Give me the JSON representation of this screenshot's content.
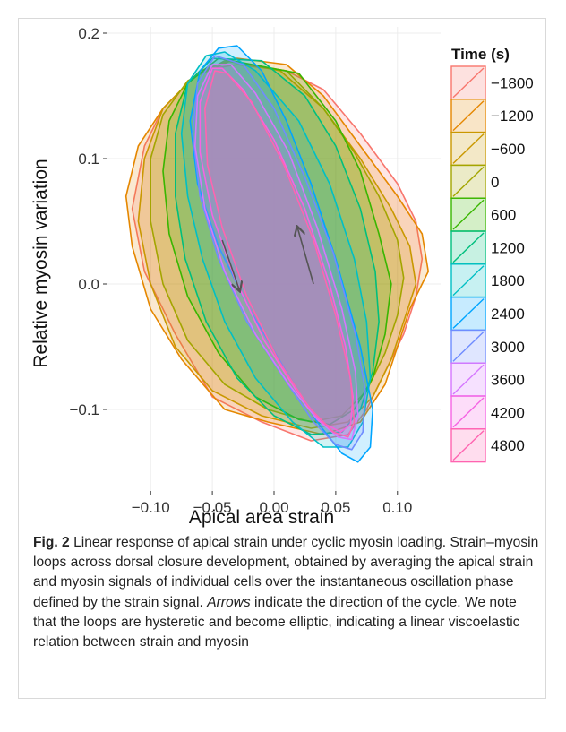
{
  "chart_data": {
    "type": "area",
    "subtype": "closed-loop polygons (strain–myosin loops)",
    "xlabel": "Apical area strain",
    "ylabel": "Relative myosin variation",
    "xlim": [
      -0.135,
      0.135
    ],
    "ylim": [
      -0.165,
      0.205
    ],
    "x_ticks": [
      -0.1,
      -0.05,
      0.0,
      0.05,
      0.1
    ],
    "x_tick_labels": [
      "−0.10",
      "−0.05",
      "0.00",
      "0.05",
      "0.10"
    ],
    "y_ticks": [
      -0.1,
      0.0,
      0.1,
      0.2
    ],
    "y_tick_labels": [
      "−0.1",
      "0.0",
      "0.1",
      "0.2"
    ],
    "grid": true,
    "legend": {
      "title": "Time (s)",
      "placement": "right"
    },
    "fill_opacity": 0.18,
    "series": [
      {
        "name": "−1800",
        "color": "#F8766D",
        "x": [
          -0.03,
          -0.06,
          -0.09,
          -0.105,
          -0.115,
          -0.105,
          -0.08,
          -0.05,
          -0.01,
          0.03,
          0.06,
          0.075,
          0.09,
          0.105,
          0.115,
          0.12,
          0.115,
          0.1,
          0.07,
          0.04,
          0.01
        ],
        "y": [
          0.175,
          0.17,
          0.14,
          0.11,
          0.06,
          0.01,
          -0.04,
          -0.09,
          -0.11,
          -0.125,
          -0.12,
          -0.1,
          -0.07,
          -0.04,
          -0.01,
          0.02,
          0.05,
          0.08,
          0.12,
          0.155,
          0.17
        ]
      },
      {
        "name": "−1200",
        "color": "#E58700",
        "x": [
          -0.03,
          -0.06,
          -0.09,
          -0.11,
          -0.12,
          -0.115,
          -0.1,
          -0.075,
          -0.04,
          -0.005,
          0.04,
          0.07,
          0.09,
          0.1,
          0.11,
          0.12,
          0.125,
          0.12,
          0.1,
          0.07,
          0.04,
          0.01
        ],
        "y": [
          0.18,
          0.17,
          0.14,
          0.11,
          0.07,
          0.03,
          -0.02,
          -0.06,
          -0.1,
          -0.11,
          -0.12,
          -0.11,
          -0.08,
          -0.05,
          -0.02,
          0.0,
          0.01,
          0.04,
          0.07,
          0.11,
          0.15,
          0.175
        ]
      },
      {
        "name": "−600",
        "color": "#C99800",
        "x": [
          -0.035,
          -0.065,
          -0.09,
          -0.105,
          -0.11,
          -0.1,
          -0.08,
          -0.05,
          -0.01,
          0.03,
          0.06,
          0.08,
          0.095,
          0.105,
          0.115,
          0.11,
          0.095,
          0.07,
          0.04,
          0.005
        ],
        "y": [
          0.178,
          0.165,
          0.14,
          0.1,
          0.05,
          0.0,
          -0.05,
          -0.085,
          -0.105,
          -0.115,
          -0.11,
          -0.09,
          -0.06,
          -0.03,
          0.0,
          0.03,
          0.06,
          0.1,
          0.14,
          0.17
        ]
      },
      {
        "name": "0",
        "color": "#A3A500",
        "x": [
          -0.04,
          -0.07,
          -0.09,
          -0.1,
          -0.1,
          -0.09,
          -0.07,
          -0.04,
          -0.005,
          0.03,
          0.055,
          0.075,
          0.09,
          0.1,
          0.105,
          0.1,
          0.085,
          0.065,
          0.04,
          0.01
        ],
        "y": [
          0.178,
          0.162,
          0.135,
          0.1,
          0.05,
          0.0,
          -0.045,
          -0.08,
          -0.1,
          -0.11,
          -0.105,
          -0.085,
          -0.055,
          -0.025,
          0.005,
          0.035,
          0.07,
          0.105,
          0.14,
          0.17
        ]
      },
      {
        "name": "600",
        "color": "#39B600",
        "x": [
          -0.045,
          -0.07,
          -0.085,
          -0.09,
          -0.085,
          -0.07,
          -0.045,
          -0.015,
          0.02,
          0.045,
          0.065,
          0.08,
          0.09,
          0.095,
          0.085,
          0.07,
          0.05,
          0.02
        ],
        "y": [
          0.18,
          0.16,
          0.13,
          0.09,
          0.04,
          -0.01,
          -0.055,
          -0.09,
          -0.108,
          -0.112,
          -0.1,
          -0.075,
          -0.04,
          0.0,
          0.04,
          0.09,
          0.13,
          0.168
        ]
      },
      {
        "name": "1200",
        "color": "#00BF7D",
        "x": [
          -0.05,
          -0.07,
          -0.08,
          -0.08,
          -0.072,
          -0.055,
          -0.03,
          0.0,
          0.03,
          0.055,
          0.07,
          0.08,
          0.085,
          0.082,
          0.07,
          0.05,
          0.025,
          -0.01
        ],
        "y": [
          0.18,
          0.16,
          0.12,
          0.07,
          0.02,
          -0.03,
          -0.075,
          -0.105,
          -0.12,
          -0.118,
          -0.1,
          -0.07,
          -0.03,
          0.01,
          0.06,
          0.11,
          0.15,
          0.178
        ]
      },
      {
        "name": "1800",
        "color": "#00BFC4",
        "x": [
          -0.055,
          -0.07,
          -0.075,
          -0.07,
          -0.058,
          -0.04,
          -0.015,
          0.015,
          0.04,
          0.06,
          0.072,
          0.078,
          0.075,
          0.065,
          0.045,
          0.02,
          -0.015,
          -0.04
        ],
        "y": [
          0.182,
          0.16,
          0.12,
          0.07,
          0.02,
          -0.03,
          -0.075,
          -0.11,
          -0.13,
          -0.13,
          -0.11,
          -0.075,
          -0.03,
          0.02,
          0.08,
          0.13,
          0.17,
          0.185
        ]
      },
      {
        "name": "2400",
        "color": "#00A5FF",
        "x": [
          -0.045,
          -0.06,
          -0.068,
          -0.062,
          -0.045,
          -0.02,
          0.01,
          0.035,
          0.055,
          0.068,
          0.078,
          0.08,
          0.07,
          0.05,
          0.03,
          0.01,
          -0.01,
          -0.03
        ],
        "y": [
          0.188,
          0.17,
          0.13,
          0.08,
          0.03,
          -0.02,
          -0.07,
          -0.11,
          -0.135,
          -0.142,
          -0.13,
          -0.1,
          -0.05,
          0.02,
          0.08,
          0.13,
          0.17,
          0.19
        ]
      },
      {
        "name": "3000",
        "color": "#6F8CFF",
        "x": [
          -0.048,
          -0.062,
          -0.066,
          -0.06,
          -0.045,
          -0.022,
          0.008,
          0.032,
          0.05,
          0.063,
          0.072,
          0.074,
          0.066,
          0.048,
          0.025,
          0.0,
          -0.025
        ],
        "y": [
          0.182,
          0.16,
          0.12,
          0.07,
          0.02,
          -0.03,
          -0.075,
          -0.11,
          -0.128,
          -0.132,
          -0.118,
          -0.085,
          -0.04,
          0.025,
          0.085,
          0.14,
          0.175
        ]
      },
      {
        "name": "3600",
        "color": "#D576FF",
        "x": [
          -0.05,
          -0.062,
          -0.064,
          -0.056,
          -0.04,
          -0.015,
          0.012,
          0.035,
          0.052,
          0.063,
          0.068,
          0.066,
          0.055,
          0.035,
          0.012,
          -0.015,
          -0.035
        ],
        "y": [
          0.175,
          0.15,
          0.11,
          0.06,
          0.01,
          -0.04,
          -0.08,
          -0.108,
          -0.122,
          -0.124,
          -0.105,
          -0.07,
          -0.02,
          0.045,
          0.105,
          0.152,
          0.175
        ]
      },
      {
        "name": "4200",
        "color": "#F564E3",
        "x": [
          -0.05,
          -0.06,
          -0.06,
          -0.05,
          -0.032,
          -0.008,
          0.018,
          0.038,
          0.054,
          0.062,
          0.064,
          0.058,
          0.045,
          0.025,
          0.0,
          -0.025,
          -0.042
        ],
        "y": [
          0.172,
          0.145,
          0.105,
          0.055,
          0.005,
          -0.045,
          -0.085,
          -0.11,
          -0.118,
          -0.112,
          -0.09,
          -0.05,
          0.0,
          0.06,
          0.115,
          0.155,
          0.172
        ]
      },
      {
        "name": "4800",
        "color": "#FF64B0",
        "x": [
          -0.048,
          -0.056,
          -0.054,
          -0.042,
          -0.022,
          0.003,
          0.028,
          0.048,
          0.06,
          0.065,
          0.062,
          0.05,
          0.032,
          0.008,
          -0.018,
          -0.038
        ],
        "y": [
          0.17,
          0.14,
          0.095,
          0.045,
          -0.01,
          -0.06,
          -0.098,
          -0.118,
          -0.122,
          -0.11,
          -0.075,
          -0.025,
          0.035,
          0.095,
          0.145,
          0.168
        ]
      }
    ],
    "arrows": [
      {
        "from": [
          -0.042,
          0.035
        ],
        "to": [
          -0.028,
          -0.005
        ]
      },
      {
        "from": [
          0.032,
          0.0
        ],
        "to": [
          0.019,
          0.045
        ]
      }
    ]
  },
  "caption": {
    "label": "Fig. 2",
    "text1": " Linear response of apical strain under cyclic myosin loading. Strain–myosin loops across dorsal closure development, obtained by averaging the apical strain and myosin signals of individual cells over the instantaneous oscillation phase defined by the strain signal. ",
    "italic": "Arrows",
    "text2": " indicate the direction of the cycle. We note that the loops are hysteretic and become elliptic, indicating a linear viscoelastic relation between strain and myosin"
  }
}
